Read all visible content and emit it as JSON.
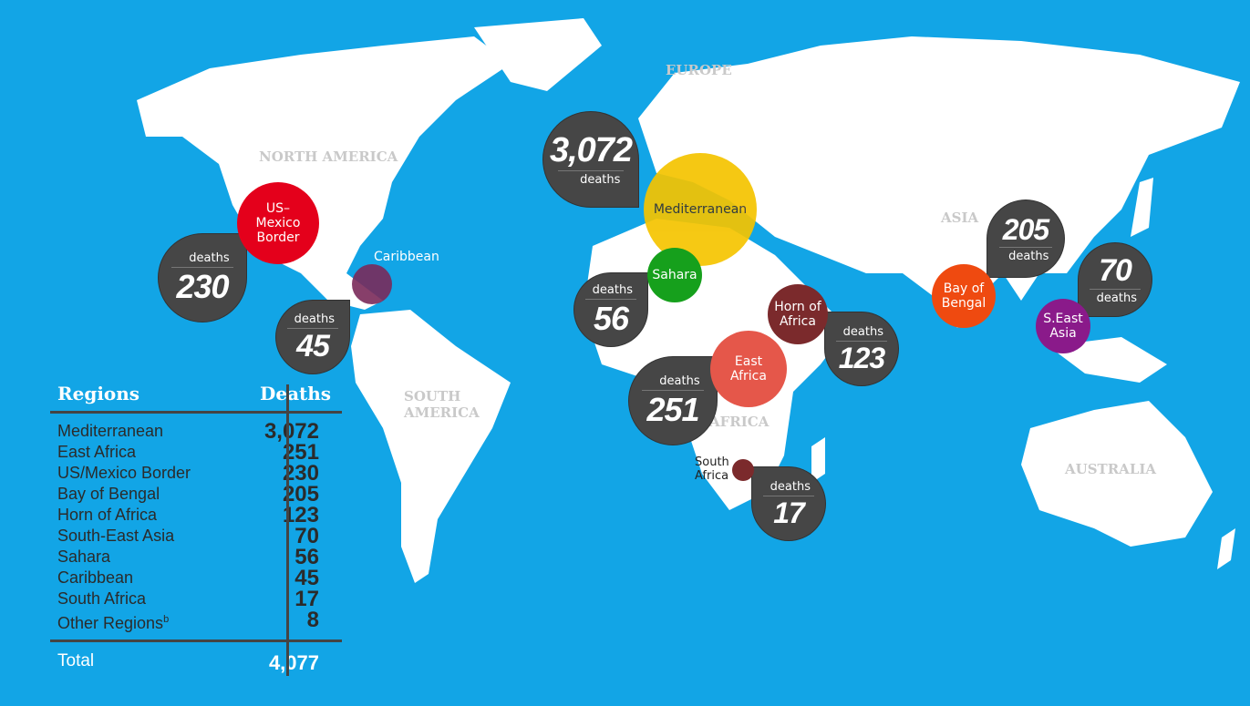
{
  "colors": {
    "ocean": "#12a5e6",
    "land": "#ffffff",
    "bubble": "#464646"
  },
  "continents": {
    "north_america": "NORTH AMERICA",
    "europe": "EUROPE",
    "asia": "ASIA",
    "south_america": "SOUTH AMERICA",
    "africa": "AFRICA",
    "australia": "AUSTRALIA"
  },
  "regions": [
    {
      "key": "med",
      "label": "Mediterranean",
      "color": "#f5c400",
      "text": "#333"
    },
    {
      "key": "sahara",
      "label": "Sahara",
      "color": "#16a01c"
    },
    {
      "key": "horn",
      "label": "Horn of Africa",
      "color": "#7b2a2c"
    },
    {
      "key": "east",
      "label": "East Africa",
      "color": "#e5574a"
    },
    {
      "key": "south",
      "label": "South Africa",
      "color": "#7b2a2c"
    },
    {
      "key": "usmx",
      "label": "US–Mexico Border",
      "color": "#e4001b"
    },
    {
      "key": "carib",
      "label": "Caribbean",
      "color": "#7a2a5a"
    },
    {
      "key": "bengal",
      "label": "Bay of Bengal",
      "color": "#ef4a10"
    },
    {
      "key": "sea",
      "label": "S.East Asia",
      "color": "#8a1a8a"
    }
  ],
  "bubbles": [
    {
      "value": "3,072",
      "label": "deaths"
    },
    {
      "value": "56",
      "label": "deaths"
    },
    {
      "value": "123",
      "label": "deaths"
    },
    {
      "value": "251",
      "label": "deaths"
    },
    {
      "value": "17",
      "label": "deaths"
    },
    {
      "value": "230",
      "label": "deaths"
    },
    {
      "value": "45",
      "label": "deaths"
    },
    {
      "value": "205",
      "label": "deaths"
    },
    {
      "value": "70",
      "label": "deaths"
    }
  ],
  "table": {
    "header": {
      "region": "Regions",
      "deaths": "Deaths"
    },
    "rows": [
      {
        "region": "Mediterranean",
        "deaths": "3,072"
      },
      {
        "region": "East Africa",
        "deaths": "251"
      },
      {
        "region": "US/Mexico Border",
        "deaths": "230"
      },
      {
        "region": "Bay of Bengal",
        "deaths": "205"
      },
      {
        "region": "Horn of Africa",
        "deaths": "123"
      },
      {
        "region": "South-East Asia",
        "deaths": "70"
      },
      {
        "region": "Sahara",
        "deaths": "56"
      },
      {
        "region": "Caribbean",
        "deaths": "45"
      },
      {
        "region": "South Africa",
        "deaths": "17"
      },
      {
        "region": "Other Regions",
        "sup": "b",
        "deaths": "8"
      }
    ],
    "total": {
      "label": "Total",
      "value": "4,077"
    }
  }
}
